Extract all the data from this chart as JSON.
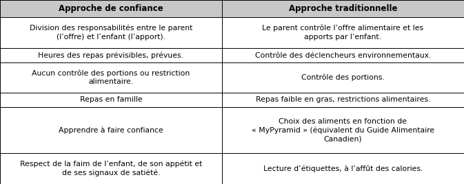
{
  "headers": [
    "Approche de confiance",
    "Approche traditionnelle"
  ],
  "rows": [
    [
      "Division des responsabilités entre le parent\n(l’offre) et l’enfant (l’apport).",
      "Le parent contrôle l’offre alimentaire et les\napports par l’enfant."
    ],
    [
      "Heures des repas prévisibles, prévues.",
      "Contrôle des déclencheurs environnementaux."
    ],
    [
      "Aucun contrôle des portions ou restriction\nalimentaire.",
      "Contrôle des portions."
    ],
    [
      "Repas en famille",
      "Repas faible en gras, restrictions alimentaires."
    ],
    [
      "Apprendre à faire confiance",
      "Choix des aliments en fonction de\n« MyPyramid » (équivalent du Guide Alimentaire\nCanadien)"
    ],
    [
      "Respect de la faim de l’enfant, de son appétit et\nde ses signaux de satiété.",
      "Lecture d’étiquettes, à l’affût des calories."
    ]
  ],
  "header_bg": "#c8c8c8",
  "cell_bg": "#ffffff",
  "border_color": "#000000",
  "text_color": "#000000",
  "header_fontsize": 8.5,
  "cell_fontsize": 7.8,
  "fig_width": 6.73,
  "fig_height": 2.68,
  "dpi": 100,
  "col_split": 0.478,
  "row_heights_rel": [
    1.15,
    2.1,
    1.0,
    2.0,
    1.0,
    3.1,
    2.1
  ]
}
